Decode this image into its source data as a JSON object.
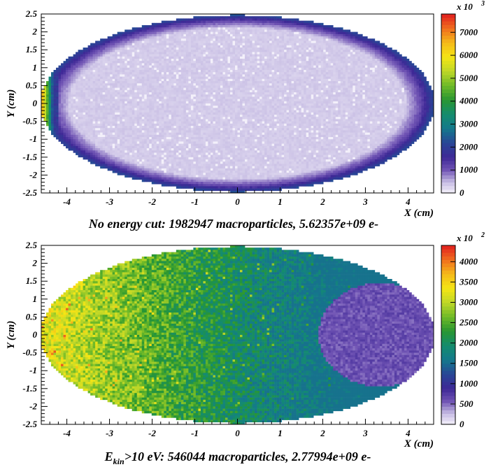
{
  "chart_data": [
    {
      "type": "heatmap",
      "caption": "No energy cut: 1982947 macroparticles, 5.62357e+09 e-",
      "xlabel": "X (cm)",
      "ylabel": "Y (cm)",
      "xlim": [
        -4.6,
        4.6
      ],
      "ylim": [
        -2.5,
        2.5
      ],
      "x_ticks": [
        -4,
        -3,
        -2,
        -1,
        0,
        1,
        2,
        3,
        4
      ],
      "x_tick_labels": [
        "-4",
        "-3",
        "-2",
        "-1",
        "0",
        "1",
        "2",
        "3",
        "4"
      ],
      "y_ticks": [
        -2.5,
        -2,
        -1.5,
        -1,
        -0.5,
        0,
        0.5,
        1,
        1.5,
        2,
        2.5
      ],
      "y_tick_labels": [
        "-2.5",
        "-2",
        "-1.5",
        "-1",
        "-0.5",
        "0",
        "0.5",
        "1",
        "1.5",
        "2",
        "2.5"
      ],
      "colorbar": {
        "exponent_label": "x 10",
        "exponent_power": "3",
        "range": [
          0,
          7800
        ],
        "ticks": [
          0,
          1000,
          2000,
          3000,
          4000,
          5000,
          6000,
          7000
        ],
        "tick_labels": [
          "0",
          "1000",
          "2000",
          "3000",
          "4000",
          "5000",
          "6000",
          "7000"
        ]
      },
      "pattern": "uniform-ellipse-with-dense-rim-and-hot-left-edge"
    },
    {
      "type": "heatmap",
      "caption_sub": "kin",
      "caption_rest": ">10 eV: 546044 macroparticles, 2.77994e+09  e-",
      "caption_prefix": "E",
      "xlabel": "X (cm)",
      "ylabel": "Y (cm)",
      "xlim": [
        -4.6,
        4.6
      ],
      "ylim": [
        -2.5,
        2.5
      ],
      "x_ticks": [
        -4,
        -3,
        -2,
        -1,
        0,
        1,
        2,
        3,
        4
      ],
      "x_tick_labels": [
        "-4",
        "-3",
        "-2",
        "-1",
        "0",
        "1",
        "2",
        "3",
        "4"
      ],
      "y_ticks": [
        -2.5,
        -2,
        -1.5,
        -1,
        -0.5,
        0,
        0.5,
        1,
        1.5,
        2,
        2.5
      ],
      "y_tick_labels": [
        "-2.5",
        "-2",
        "-1.5",
        "-1",
        "-0.5",
        "0",
        "0.5",
        "1",
        "1.5",
        "2",
        "2.5"
      ],
      "colorbar": {
        "exponent_label": "x 10",
        "exponent_power": "2",
        "range": [
          0,
          4400
        ],
        "ticks": [
          0,
          500,
          1000,
          1500,
          2000,
          2500,
          3000,
          3500,
          4000
        ],
        "tick_labels": [
          "0",
          "500",
          "1000",
          "1500",
          "2000",
          "2500",
          "3000",
          "3500",
          "4000"
        ]
      },
      "pattern": "gradient-left-hot-with-cold-disk-right"
    }
  ]
}
